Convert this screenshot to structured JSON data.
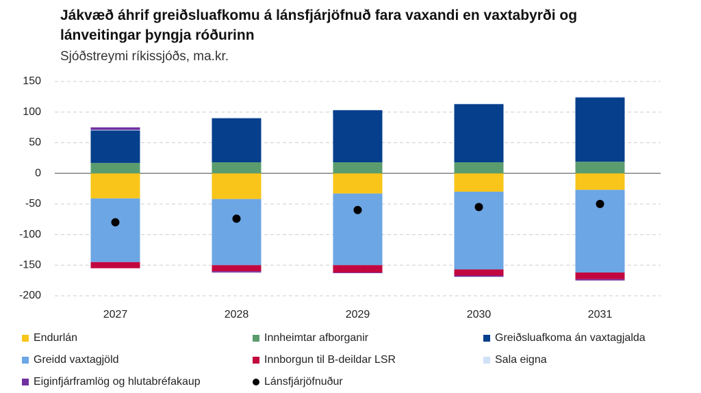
{
  "chart_data": {
    "type": "bar",
    "stacked": true,
    "title": "Jákvæð áhrif greiðsluafkomu á lánsfjárjöfnuð fara vaxandi en vaxtabyrði og lánveitingar þyngja róðurinn",
    "subtitle": "Sjóðstreymi ríkissjóðs, ma.kr.",
    "categories": [
      "2027",
      "2028",
      "2029",
      "2030",
      "2031"
    ],
    "series": [
      {
        "name": "Endurlán",
        "color": "#f9c51a",
        "values": [
          -41,
          -42,
          -33,
          -30,
          -27
        ]
      },
      {
        "name": "Innheimtar afborganir",
        "color": "#5b9c6e",
        "values": [
          17,
          18,
          18,
          18,
          19
        ]
      },
      {
        "name": "Greiðsluafkoma án vaxtagjalda",
        "color": "#063f8c",
        "values": [
          53,
          72,
          85,
          95,
          105
        ]
      },
      {
        "name": "Greidd vaxtagjöld",
        "color": "#6ca6e4",
        "values": [
          -104,
          -108,
          -117,
          -127,
          -135
        ]
      },
      {
        "name": "Innborgun til B-deildar LSR",
        "color": "#c2063f",
        "values": [
          -10,
          -10,
          -12,
          -10,
          -11
        ]
      },
      {
        "name": "Sala eigna",
        "color": "#cfe1f6",
        "values": [
          1,
          1,
          1,
          1,
          1
        ]
      },
      {
        "name": "Eiginfjárframlög og hlutabréfakaup",
        "color": "#7030a0",
        "values": [
          4,
          -2,
          -1,
          -2,
          -2
        ]
      },
      {
        "name": "Lánsfjárjöfnuður",
        "color": "#000000",
        "type": "scatter",
        "values": [
          -80,
          -74,
          -60,
          -55,
          -50
        ]
      }
    ],
    "ylim": [
      -200,
      150
    ],
    "yticks": [
      -200,
      -150,
      -100,
      -50,
      0,
      50,
      100,
      150
    ],
    "grid": true
  }
}
